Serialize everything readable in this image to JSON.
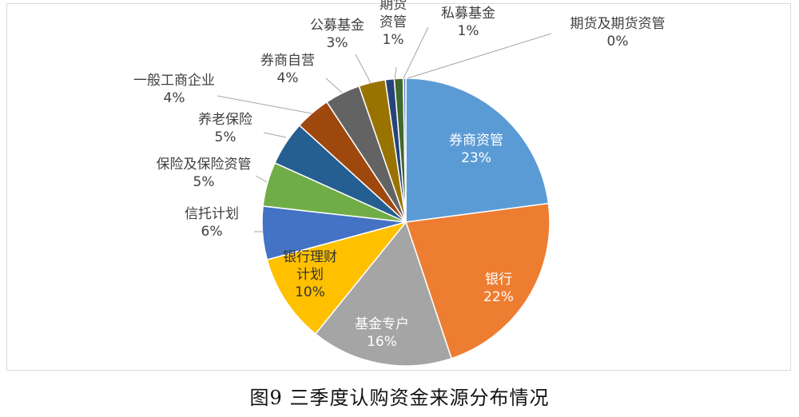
{
  "caption": "图9 三季度认购资金来源分布情况",
  "chart_data": {
    "type": "pie",
    "title": "",
    "start_angle_deg": 0,
    "direction": "clockwise",
    "legend": "none",
    "slices": [
      {
        "label": "券商资管",
        "value": 23,
        "pct_label": "23%",
        "color": "#5b9bd5"
      },
      {
        "label": "银行",
        "value": 22,
        "pct_label": "22%",
        "color": "#ed7d31"
      },
      {
        "label": "基金专户",
        "value": 16,
        "pct_label": "16%",
        "color": "#a5a5a5"
      },
      {
        "label": "银行理财计划",
        "value": 10,
        "pct_label": "10%",
        "color": "#ffc000"
      },
      {
        "label": "信托计划",
        "value": 6,
        "pct_label": "6%",
        "color": "#4472c4"
      },
      {
        "label": "保险及保险资管",
        "value": 5,
        "pct_label": "5%",
        "color": "#70ad47"
      },
      {
        "label": "养老保险",
        "value": 5,
        "pct_label": "5%",
        "color": "#255e91"
      },
      {
        "label": "一般工商企业",
        "value": 4,
        "pct_label": "4%",
        "color": "#9e480e"
      },
      {
        "label": "券商自营",
        "value": 4,
        "pct_label": "4%",
        "color": "#636363"
      },
      {
        "label": "公募基金",
        "value": 3,
        "pct_label": "3%",
        "color": "#997300"
      },
      {
        "label": "期货资管",
        "value": 1,
        "pct_label": "1%",
        "color": "#264478"
      },
      {
        "label": "私募基金",
        "value": 1,
        "pct_label": "1%",
        "color": "#43682b"
      },
      {
        "label": "期货及期货资管",
        "value": 0.3,
        "pct_label": "0%",
        "color": "#698ed0"
      }
    ]
  }
}
